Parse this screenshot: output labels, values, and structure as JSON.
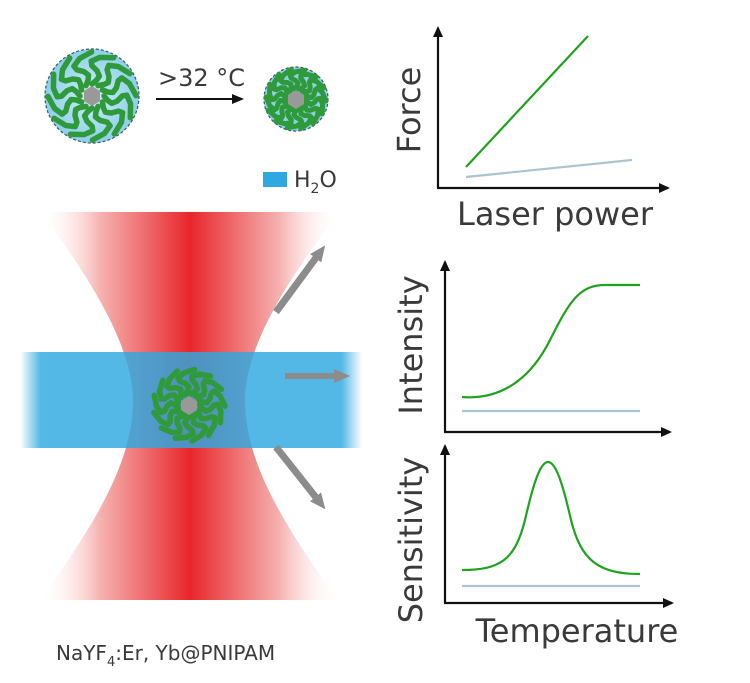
{
  "transition": {
    "label": ">32 °C"
  },
  "legend": {
    "h2o": {
      "prefix": "H",
      "sub": "2",
      "suffix": "O",
      "color": "#2ea8e0"
    }
  },
  "material": {
    "prefix": "NaYF",
    "sub": "4",
    "suffix": ":Er, Yb@PNIPAM"
  },
  "colors": {
    "beam": "#e8262b",
    "water": "#2ea8e0",
    "polymer": "#2f9a3a",
    "core": "#999999",
    "green_curve": "#1fa31f",
    "ref_curve": "#a9c4d2",
    "arrow": "#8c8c8c"
  },
  "charts": {
    "force": {
      "ylabel": "Force",
      "xlabel": "Laser power"
    },
    "intensity": {
      "ylabel": "Intensity"
    },
    "sensitivity": {
      "ylabel": "Sensitivity",
      "xlabel": "Temperature"
    }
  }
}
